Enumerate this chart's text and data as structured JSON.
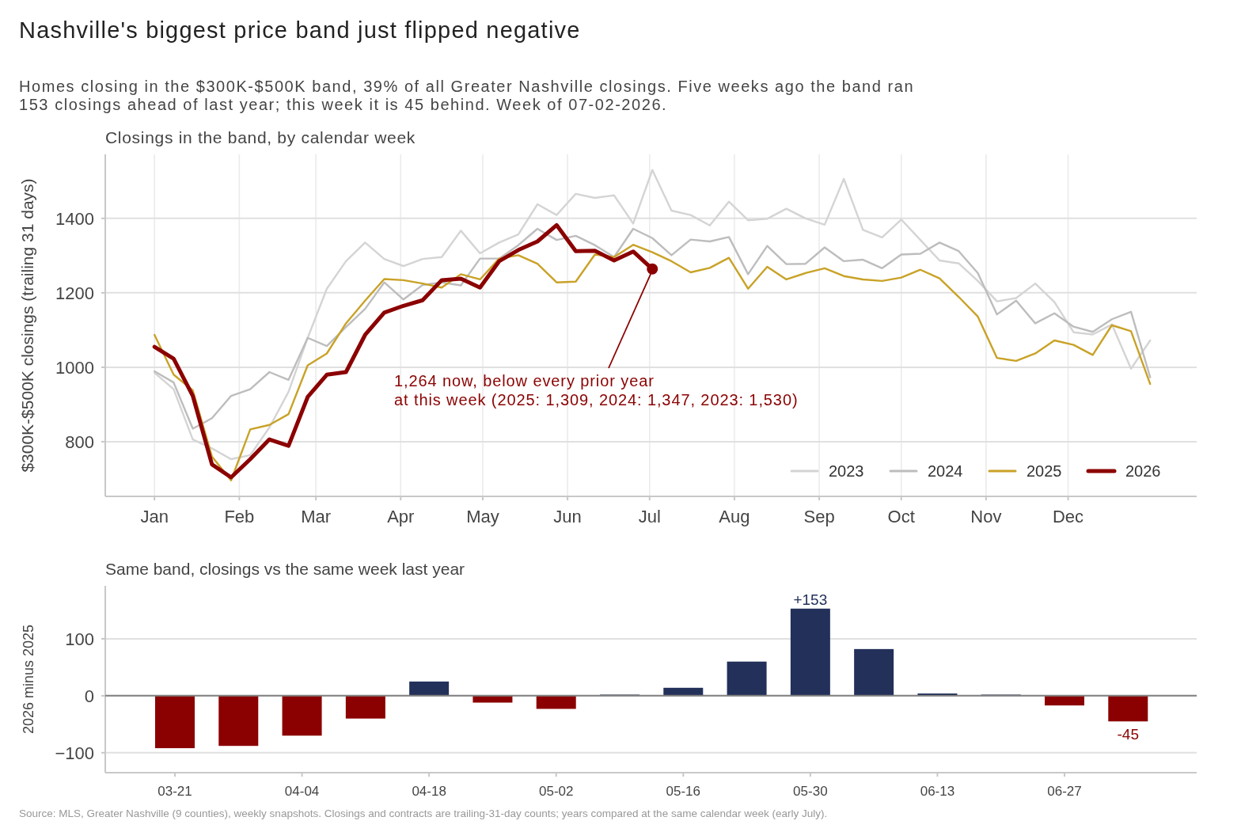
{
  "chart_data": [
    {
      "type": "line",
      "title": "Nashville's biggest price band just flipped negative",
      "subtitle": "Homes closing in the $300K-$500K band, 39% of all Greater Nashville closings. Five weeks ago the band ran\n153 closings ahead of last year; this week it is 45 behind. Week of 07-02-2026.",
      "ylabel": "$300K-$500K closings (trailing 31 days)",
      "annotations": [
        "Closings in the band, by calendar week",
        {
          "text": "1,264 now, below every prior year\nat this week (2025: 1,309, 2024: 1,347, 2023: 1,530)",
          "x": "2026-07-02",
          "y": 1264
        }
      ],
      "x": [
        "2026-01-01",
        "2026-01-08",
        "2026-01-15",
        "2026-01-22",
        "2026-01-29",
        "2026-02-05",
        "2026-02-12",
        "2026-02-19",
        "2026-02-26",
        "2026-03-05",
        "2026-03-12",
        "2026-03-19",
        "2026-03-26",
        "2026-04-02",
        "2026-04-09",
        "2026-04-16",
        "2026-04-23",
        "2026-04-30",
        "2026-05-07",
        "2026-05-14",
        "2026-05-21",
        "2026-05-28",
        "2026-06-04",
        "2026-06-11",
        "2026-06-18",
        "2026-06-25",
        "2026-07-02",
        "2026-07-09",
        "2026-07-16",
        "2026-07-23",
        "2026-07-30",
        "2026-08-06",
        "2026-08-13",
        "2026-08-20",
        "2026-08-27",
        "2026-09-03",
        "2026-09-10",
        "2026-09-17",
        "2026-09-24",
        "2026-10-01",
        "2026-10-08",
        "2026-10-15",
        "2026-10-22",
        "2026-10-29",
        "2026-11-05",
        "2026-11-12",
        "2026-11-19",
        "2026-11-26",
        "2026-12-03",
        "2026-12-10",
        "2026-12-17",
        "2026-12-24",
        "2026-12-31"
      ],
      "xlim": [
        "2025-12-14",
        "2027-01-17"
      ],
      "xticks": [
        {
          "value": "2026-01-01",
          "label": "Jan"
        },
        {
          "value": "2026-02-01",
          "label": "Feb"
        },
        {
          "value": "2026-03-01",
          "label": "Mar"
        },
        {
          "value": "2026-04-01",
          "label": "Apr"
        },
        {
          "value": "2026-05-01",
          "label": "May"
        },
        {
          "value": "2026-06-01",
          "label": "Jun"
        },
        {
          "value": "2026-07-01",
          "label": "Jul"
        },
        {
          "value": "2026-08-01",
          "label": "Aug"
        },
        {
          "value": "2026-09-01",
          "label": "Sep"
        },
        {
          "value": "2026-10-01",
          "label": "Oct"
        },
        {
          "value": "2026-11-01",
          "label": "Nov"
        },
        {
          "value": "2026-12-01",
          "label": "Dec"
        }
      ],
      "ylim": [
        653,
        1572
      ],
      "yticks": [
        800,
        1000,
        1200,
        1400
      ],
      "grid": true,
      "legend": "bottom right",
      "series": [
        {
          "name": "2023",
          "color": "#d4d4d4",
          "values": [
            985,
            941,
            806,
            782,
            753,
            764,
            838,
            934,
            1079,
            1211,
            1285,
            1335,
            1291,
            1272,
            1291,
            1296,
            1367,
            1306,
            1335,
            1357,
            1438,
            1409,
            1466,
            1455,
            1462,
            1386,
            1530,
            1421,
            1409,
            1381,
            1445,
            1395,
            1399,
            1426,
            1400,
            1383,
            1506,
            1369,
            1349,
            1397,
            1342,
            1287,
            1279,
            1232,
            1177,
            1186,
            1225,
            1175,
            1094,
            1088,
            1115,
            996,
            1072
          ]
        },
        {
          "name": "2024",
          "color": "#bdbdbd",
          "values": [
            989,
            959,
            835,
            863,
            923,
            941,
            987,
            966,
            1079,
            1057,
            1108,
            1157,
            1228,
            1182,
            1221,
            1228,
            1220,
            1292,
            1292,
            1328,
            1372,
            1342,
            1353,
            1328,
            1296,
            1372,
            1347,
            1301,
            1343,
            1338,
            1350,
            1250,
            1326,
            1277,
            1278,
            1322,
            1285,
            1289,
            1266,
            1303,
            1305,
            1335,
            1312,
            1253,
            1142,
            1179,
            1118,
            1145,
            1109,
            1095,
            1129,
            1149,
            973
          ]
        },
        {
          "name": "2025",
          "color": "#c9a227",
          "values": [
            1087,
            980,
            938,
            760,
            696,
            833,
            845,
            874,
            1005,
            1037,
            1118,
            1179,
            1237,
            1234,
            1225,
            1214,
            1250,
            1236,
            1292,
            1301,
            1278,
            1228,
            1230,
            1303,
            1296,
            1329,
            1309,
            1285,
            1255,
            1267,
            1294,
            1211,
            1270,
            1236,
            1253,
            1266,
            1245,
            1236,
            1232,
            1241,
            1262,
            1239,
            1189,
            1136,
            1025,
            1017,
            1037,
            1072,
            1060,
            1033,
            1113,
            1097,
            955
          ]
        },
        {
          "name": "2026",
          "color": "#8b0000",
          "x": [
            "2026-01-01",
            "2026-01-08",
            "2026-01-15",
            "2026-01-22",
            "2026-01-29",
            "2026-02-05",
            "2026-02-12",
            "2026-02-19",
            "2026-02-26",
            "2026-03-05",
            "2026-03-12",
            "2026-03-19",
            "2026-03-26",
            "2026-04-02",
            "2026-04-09",
            "2026-04-16",
            "2026-04-23",
            "2026-04-30",
            "2026-05-07",
            "2026-05-14",
            "2026-05-21",
            "2026-05-28",
            "2026-06-04",
            "2026-06-11",
            "2026-06-18",
            "2026-06-25",
            "2026-07-02"
          ],
          "values": [
            1055,
            1023,
            923,
            739,
            704,
            753,
            806,
            789,
            920,
            980,
            987,
            1087,
            1147,
            1165,
            1180,
            1234,
            1238,
            1214,
            1285,
            1315,
            1338,
            1382,
            1312,
            1313,
            1287,
            1311,
            1264
          ]
        }
      ]
    },
    {
      "type": "bar",
      "title": "Same band, closings vs the same week last year",
      "ylabel": "2026 minus 2025",
      "categories": [
        "03-21",
        null,
        "04-04",
        null,
        "04-18",
        null,
        "05-02",
        null,
        "05-16",
        null,
        "05-30",
        null,
        "06-13",
        null,
        "06-27",
        null
      ],
      "values": [
        -92,
        -88,
        -70,
        -40,
        25,
        -12,
        -23,
        2,
        14,
        60,
        153,
        82,
        4,
        2,
        -17,
        -45
      ],
      "colors": [
        "#8b0000",
        "#8b0000",
        "#8b0000",
        "#8b0000",
        "#22305a",
        "#8b0000",
        "#8b0000",
        "#22305a",
        "#22305a",
        "#22305a",
        "#22305a",
        "#22305a",
        "#22305a",
        "#22305a",
        "#8b0000",
        "#8b0000"
      ],
      "value_labels": [
        null,
        null,
        null,
        null,
        null,
        null,
        null,
        null,
        null,
        null,
        "+153",
        null,
        null,
        null,
        null,
        "-45"
      ],
      "ylim": [
        -135,
        193
      ],
      "yticks": [
        {
          "value": -100,
          "label": "−100"
        },
        0,
        100
      ],
      "grid": "y",
      "ref_lines": [
        {
          "axis": "y",
          "value": 0,
          "color": "#808080"
        }
      ],
      "annotations": [
        "Source: MLS, Greater Nashville (9 counties), weekly snapshots. Closings and contracts are trailing-31-day counts; years compared at the same calendar week (early July)."
      ]
    }
  ]
}
